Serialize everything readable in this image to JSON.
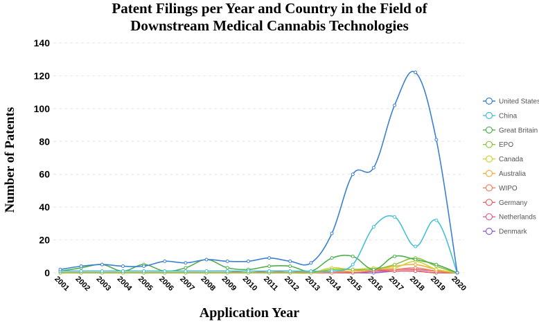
{
  "chart_data": {
    "type": "line",
    "title_line1": "Patent Filings per Year and Country in the Field of",
    "title_line2": "Downstream Medical Cannabis Technologies",
    "xlabel": "Application Year",
    "ylabel": "Number of Patents",
    "ylim": [
      0,
      140
    ],
    "yticks": [
      0,
      20,
      40,
      60,
      80,
      100,
      120,
      140
    ],
    "grid": "horizontal-dashed",
    "legend_position": "right",
    "categories": [
      "2001",
      "2002",
      "2003",
      "2004",
      "2005",
      "2006",
      "2007",
      "2008",
      "2009",
      "2010",
      "2011",
      "2012",
      "2013",
      "2014",
      "2015",
      "2016",
      "2017",
      "2018",
      "2019",
      "2020"
    ],
    "series": [
      {
        "name": "United States",
        "color": "#3a7fd0",
        "values": [
          2,
          4,
          5,
          4,
          4,
          7,
          6,
          8,
          7,
          7,
          9,
          7,
          6,
          24,
          60,
          64,
          102,
          122,
          81,
          0
        ]
      },
      {
        "name": "China",
        "color": "#45bfd4",
        "values": [
          1,
          1,
          1,
          1,
          1,
          1,
          1,
          1,
          1,
          1,
          1,
          1,
          1,
          1,
          5,
          28,
          34,
          16,
          32,
          0
        ]
      },
      {
        "name": "Great Britain",
        "color": "#4cb04c",
        "values": [
          1,
          3,
          5,
          1,
          5,
          1,
          3,
          8,
          3,
          2,
          4,
          4,
          1,
          9,
          10,
          2,
          10,
          8,
          5,
          0
        ]
      },
      {
        "name": "EPO",
        "color": "#8cc23c",
        "values": [
          0,
          0,
          0,
          0,
          0,
          0,
          0,
          0,
          0,
          0,
          0,
          0,
          0,
          2,
          2,
          2,
          5,
          9,
          4,
          0
        ]
      },
      {
        "name": "Canada",
        "color": "#d2d238",
        "values": [
          0,
          0,
          0,
          0,
          0,
          0,
          0,
          0,
          0,
          0,
          0,
          0,
          0,
          3,
          2,
          3,
          3,
          7,
          2,
          0
        ]
      },
      {
        "name": "Australia",
        "color": "#f0b040",
        "values": [
          0,
          0,
          0,
          0,
          0,
          0,
          0,
          0,
          0,
          0,
          0,
          0,
          0,
          1,
          1,
          2,
          4,
          5,
          2,
          0
        ]
      },
      {
        "name": "WIPO",
        "color": "#f08060",
        "values": [
          0,
          0,
          0,
          0,
          0,
          0,
          0,
          0,
          0,
          0,
          0,
          1,
          0,
          0,
          1,
          2,
          2,
          3,
          1,
          0
        ]
      },
      {
        "name": "Germany",
        "color": "#e86060",
        "values": [
          1,
          1,
          1,
          1,
          1,
          1,
          1,
          1,
          1,
          0,
          1,
          1,
          0,
          1,
          0,
          1,
          1,
          1,
          0,
          0
        ]
      },
      {
        "name": "Netherlands",
        "color": "#e0608a",
        "values": [
          0,
          0,
          0,
          0,
          0,
          0,
          0,
          0,
          0,
          0,
          0,
          0,
          0,
          0,
          0,
          1,
          2,
          2,
          1,
          0
        ]
      },
      {
        "name": "Denmark",
        "color": "#9060d0",
        "values": [
          0,
          0,
          0,
          0,
          0,
          0,
          0,
          0,
          0,
          0,
          0,
          0,
          0,
          0,
          0,
          0,
          1,
          1,
          0,
          0
        ]
      }
    ]
  }
}
